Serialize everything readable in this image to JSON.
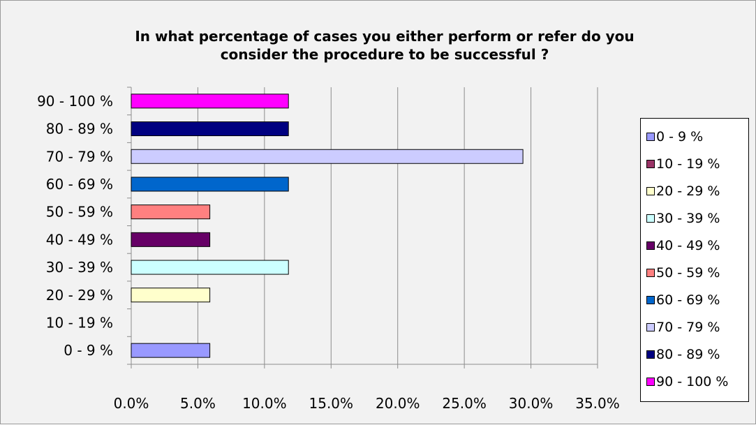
{
  "chart_data": {
    "type": "bar",
    "orientation": "horizontal",
    "title_lines": [
      "In what percentage of cases you either perform or refer do you",
      "consider the procedure to be successful ?"
    ],
    "categories": [
      "0 - 9 %",
      "10 - 19 %",
      "20 - 29 %",
      "30 - 39 %",
      "40 - 49 %",
      "50 - 59 %",
      "60 - 69 %",
      "70 - 79 %",
      "80 - 89 %",
      "90 - 100 %"
    ],
    "values": [
      5.9,
      0.0,
      5.9,
      11.8,
      5.9,
      5.9,
      11.8,
      29.4,
      11.8,
      11.8
    ],
    "colors": [
      "#9999ff",
      "#993366",
      "#ffffcc",
      "#ccffff",
      "#660066",
      "#ff8080",
      "#0066cc",
      "#ccccff",
      "#000080",
      "#ff00ff"
    ],
    "x_ticks": [
      "0.0%",
      "5.0%",
      "10.0%",
      "15.0%",
      "20.0%",
      "25.0%",
      "30.0%",
      "35.0%"
    ],
    "xlim": [
      0,
      35
    ],
    "x_unit": "percent",
    "grid": "vertical major gridlines",
    "legend_position": "right"
  }
}
